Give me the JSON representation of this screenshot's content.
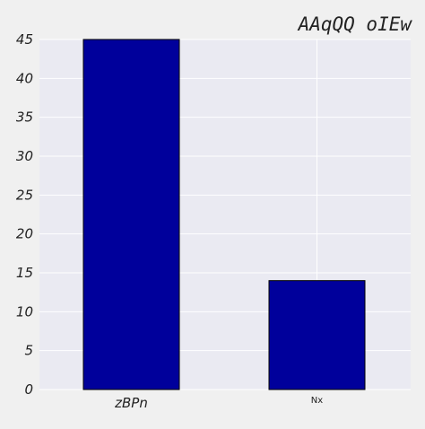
{
  "chart_data": {
    "type": "bar",
    "title": "AAqQQ  oIEw",
    "xlabel": "",
    "ylabel": "",
    "categories": [
      "zBPn",
      "Nx"
    ],
    "values": [
      45,
      14
    ],
    "ylim": [
      0,
      45
    ],
    "yticks": [
      0,
      5,
      10,
      15,
      20,
      25,
      30,
      35,
      40,
      45
    ],
    "grid": true,
    "legend": "none",
    "colors": {
      "background": "#f0f0f0",
      "plot_area": "#eaeaf2",
      "grid": "#ffffff",
      "bar": "#00009b",
      "bar_edge": "#000000",
      "text": "#222222"
    }
  }
}
